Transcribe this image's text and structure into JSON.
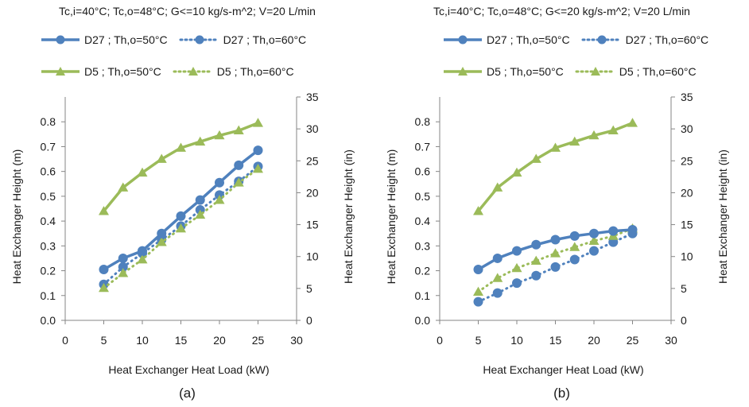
{
  "chart_data": [
    {
      "type": "line",
      "title": "Tc,i=40°C; Tc,o=48°C; G<=10 kg/s-m^2; V=20 L/min",
      "caption": "(a)",
      "xlabel": "Heat Exchanger Heat Load (kW)",
      "ylabel": "Heat Exchanger Height (m)",
      "y2label": "Heat Exchanger Height (in)",
      "xlim": [
        0,
        30
      ],
      "ylim": [
        0,
        0.9
      ],
      "y2lim": [
        0,
        35
      ],
      "xticks": [
        "0",
        "5",
        "10",
        "15",
        "20",
        "25",
        "30"
      ],
      "yticks": [
        "0.0",
        "0.1",
        "0.2",
        "0.3",
        "0.4",
        "0.5",
        "0.6",
        "0.7",
        "0.8"
      ],
      "y2ticks": [
        "0",
        "5",
        "10",
        "15",
        "20",
        "25",
        "30",
        "35"
      ],
      "grid": false,
      "legend_position": "top",
      "series": [
        {
          "name": "D27 ; Th,o=50°C",
          "color": "#4f81bd",
          "marker": "circle",
          "dash": "solid",
          "x": [
            5,
            7.5,
            10,
            12.5,
            15,
            17.5,
            20,
            22.5,
            25
          ],
          "y": [
            0.205,
            0.25,
            0.28,
            0.35,
            0.42,
            0.485,
            0.555,
            0.625,
            0.685
          ]
        },
        {
          "name": "D27 ; Th,o=60°C",
          "color": "#4f81bd",
          "marker": "circle",
          "dash": "dotted",
          "x": [
            5,
            7.5,
            10,
            12.5,
            15,
            17.5,
            20,
            22.5,
            25
          ],
          "y": [
            0.145,
            0.215,
            0.27,
            0.325,
            0.38,
            0.445,
            0.505,
            0.56,
            0.62
          ]
        },
        {
          "name": "D5 ; Th,o=50°C",
          "color": "#9bbb59",
          "marker": "triangle",
          "dash": "solid",
          "x": [
            5,
            7.5,
            10,
            12.5,
            15,
            17.5,
            20,
            22.5,
            25
          ],
          "y": [
            0.44,
            0.535,
            0.595,
            0.65,
            0.695,
            0.72,
            0.745,
            0.765,
            0.795
          ]
        },
        {
          "name": "D5 ; Th,o=60°C",
          "color": "#9bbb59",
          "marker": "triangle",
          "dash": "dotted",
          "x": [
            5,
            7.5,
            10,
            12.5,
            15,
            17.5,
            20,
            22.5,
            25
          ],
          "y": [
            0.13,
            0.19,
            0.245,
            0.315,
            0.37,
            0.425,
            0.485,
            0.555,
            0.61
          ]
        }
      ]
    },
    {
      "type": "line",
      "title": "Tc,i=40°C; Tc,o=48°C; G<=20 kg/s-m^2; V=20 L/min",
      "caption": "(b)",
      "xlabel": "Heat Exchanger Heat Load (kW)",
      "ylabel": "Heat Exchanger Height (m)",
      "y2label": "Heat Exchanger Height (in)",
      "xlim": [
        0,
        30
      ],
      "ylim": [
        0,
        0.9
      ],
      "y2lim": [
        0,
        35
      ],
      "xticks": [
        "0",
        "5",
        "10",
        "15",
        "20",
        "25",
        "30"
      ],
      "yticks": [
        "0.0",
        "0.1",
        "0.2",
        "0.3",
        "0.4",
        "0.5",
        "0.6",
        "0.7",
        "0.8"
      ],
      "y2ticks": [
        "0",
        "5",
        "10",
        "15",
        "20",
        "25",
        "30",
        "35"
      ],
      "grid": false,
      "legend_position": "top",
      "series": [
        {
          "name": "D27 ; Th,o=50°C",
          "color": "#4f81bd",
          "marker": "circle",
          "dash": "solid",
          "x": [
            5,
            7.5,
            10,
            12.5,
            15,
            17.5,
            20,
            22.5,
            25
          ],
          "y": [
            0.205,
            0.25,
            0.28,
            0.305,
            0.325,
            0.34,
            0.35,
            0.36,
            0.365
          ]
        },
        {
          "name": "D27 ; Th,o=60°C",
          "color": "#4f81bd",
          "marker": "circle",
          "dash": "dotted",
          "x": [
            5,
            7.5,
            10,
            12.5,
            15,
            17.5,
            20,
            22.5,
            25
          ],
          "y": [
            0.075,
            0.11,
            0.15,
            0.18,
            0.215,
            0.245,
            0.28,
            0.315,
            0.35
          ]
        },
        {
          "name": "D5 ; Th,o=50°C",
          "color": "#9bbb59",
          "marker": "triangle",
          "dash": "solid",
          "x": [
            5,
            7.5,
            10,
            12.5,
            15,
            17.5,
            20,
            22.5,
            25
          ],
          "y": [
            0.44,
            0.535,
            0.595,
            0.65,
            0.695,
            0.72,
            0.745,
            0.765,
            0.795
          ]
        },
        {
          "name": "D5 ; Th,o=60°C",
          "color": "#9bbb59",
          "marker": "triangle",
          "dash": "dotted",
          "x": [
            5,
            7.5,
            10,
            12.5,
            15,
            17.5,
            20,
            22.5,
            25
          ],
          "y": [
            0.115,
            0.17,
            0.21,
            0.24,
            0.27,
            0.295,
            0.32,
            0.34,
            0.37
          ]
        }
      ]
    }
  ]
}
